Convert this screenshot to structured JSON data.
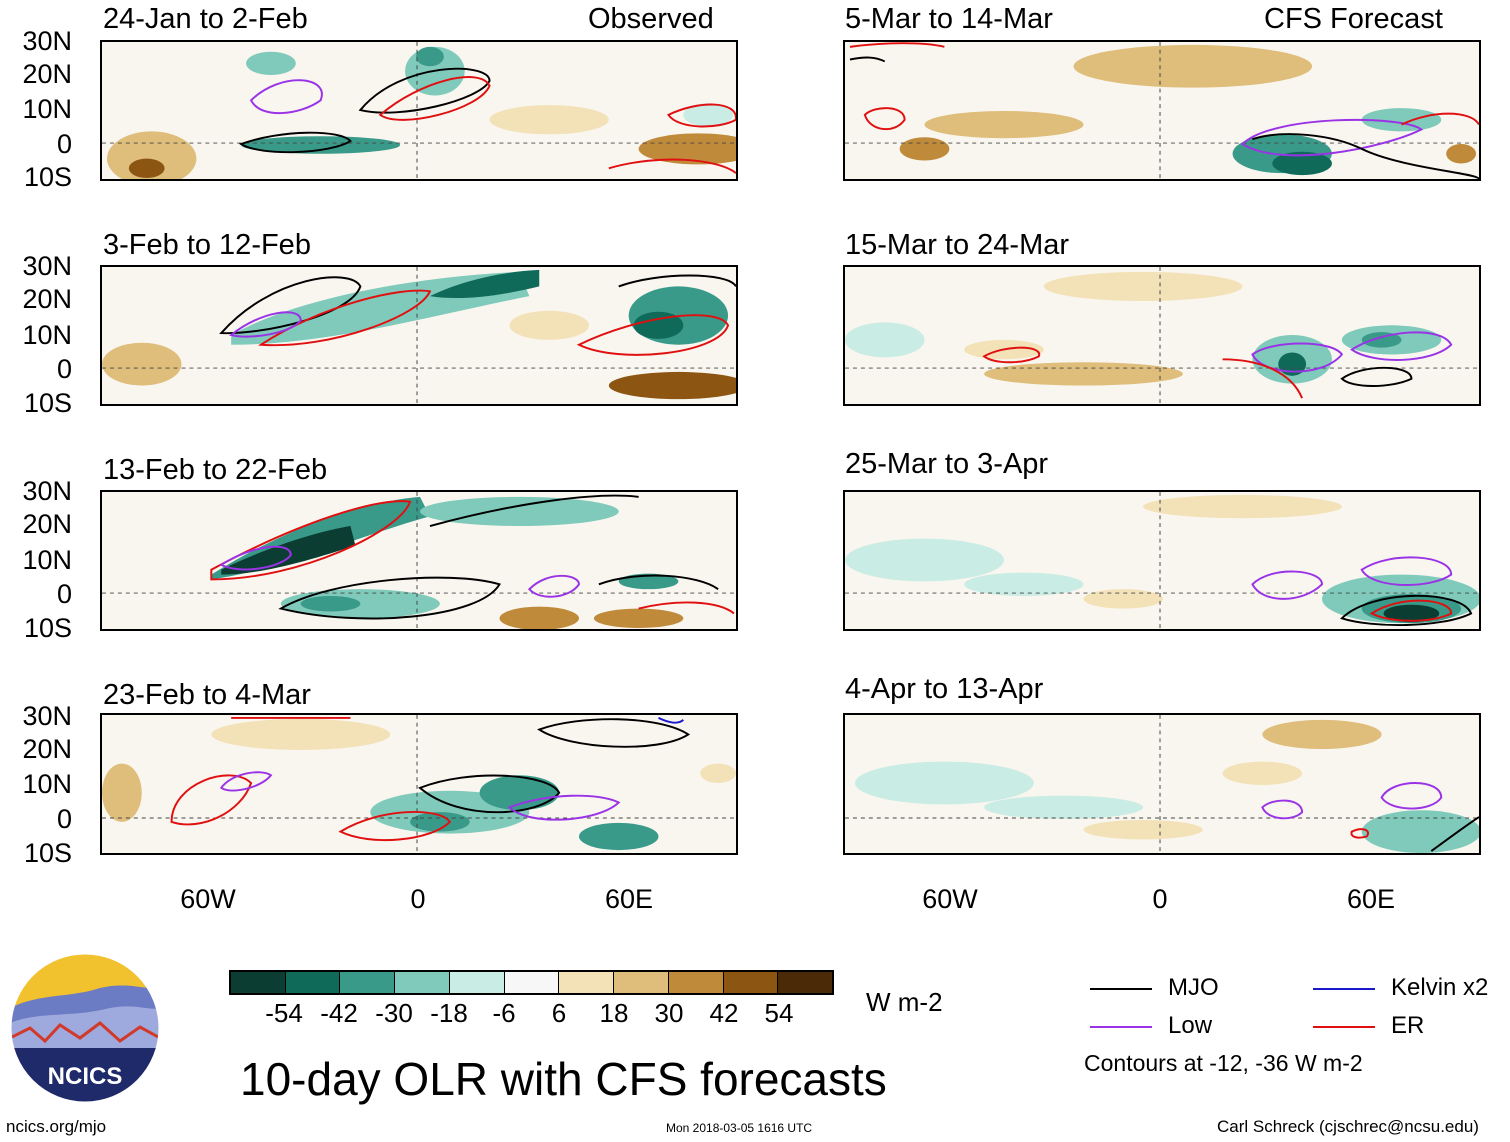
{
  "header": {
    "observed_label": "Observed",
    "forecast_label": "CFS Forecast"
  },
  "latitude_ticks": [
    "30N",
    "20N",
    "10N",
    "0",
    "10S"
  ],
  "longitude_ticks": [
    "60W",
    "0",
    "60E"
  ],
  "panels": {
    "observed": [
      {
        "title": "24-Jan to 2-Feb"
      },
      {
        "title": "3-Feb to 12-Feb"
      },
      {
        "title": "13-Feb to 22-Feb"
      },
      {
        "title": "23-Feb to 4-Mar"
      }
    ],
    "forecast": [
      {
        "title": "5-Mar to 14-Mar"
      },
      {
        "title": "15-Mar to 24-Mar"
      },
      {
        "title": "25-Mar to 3-Apr"
      },
      {
        "title": "4-Apr to 13-Apr"
      }
    ]
  },
  "colorbar": {
    "labels": [
      "-54",
      "-42",
      "-30",
      "-18",
      "-6",
      "6",
      "18",
      "30",
      "42",
      "54"
    ],
    "colors": [
      "#0b3d33",
      "#0f6a5a",
      "#3a9a8a",
      "#7fcabb",
      "#c9ece4",
      "#f7f7f7",
      "#f3e2b8",
      "#dfbd7a",
      "#bf8a3a",
      "#8c5512",
      "#4a2a07"
    ],
    "units": "W m-2"
  },
  "legend": {
    "items": [
      {
        "label": "MJO",
        "color": "#000000"
      },
      {
        "label": "Kelvin x2",
        "color": "#1a1acc"
      },
      {
        "label": "Low",
        "color": "#9a33e6"
      },
      {
        "label": "ER",
        "color": "#e01010"
      }
    ],
    "note": "Contours at -12, -36 W m-2"
  },
  "logo": {
    "text": "NCICS"
  },
  "footer": {
    "title": "10-day OLR with CFS forecasts",
    "url": "ncics.org/mjo",
    "timestamp": "Mon 2018-03-05 1616 UTC",
    "credit": "Carl Schreck (cjschrec@ncsu.edu)"
  }
}
